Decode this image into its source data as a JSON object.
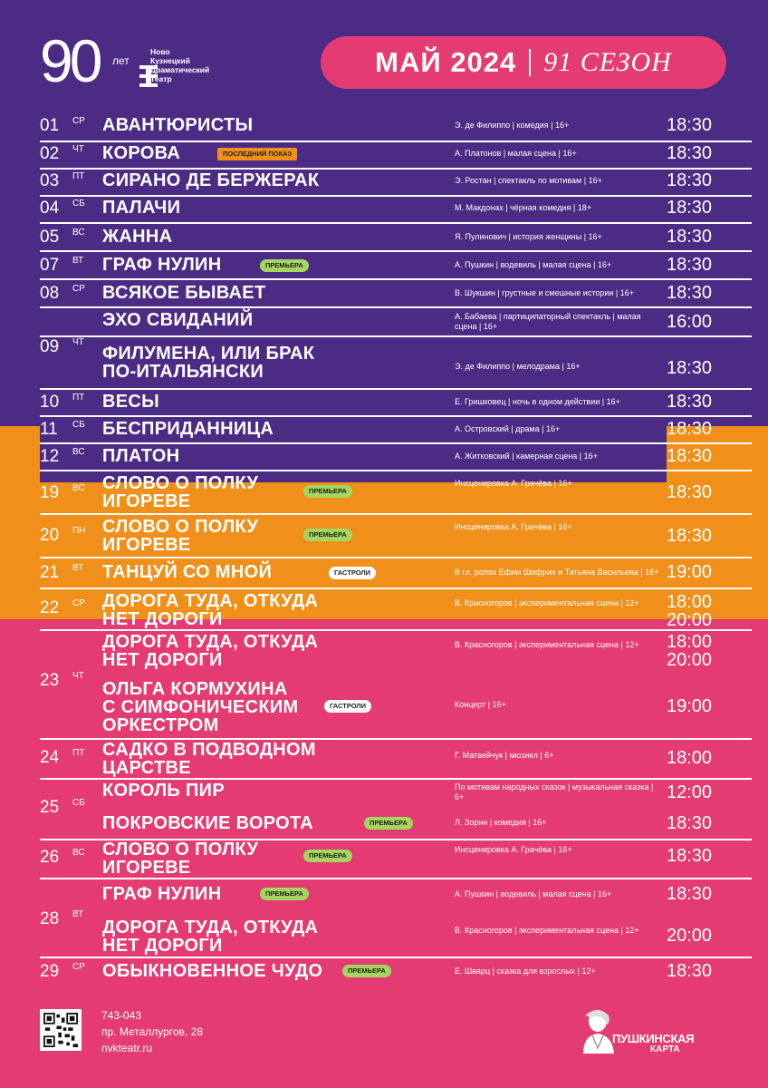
{
  "colors": {
    "purple": "#4c2b84",
    "orange": "#f0901b",
    "pink": "#e33b72",
    "premiere": "#a4d65e"
  },
  "header": {
    "logo_number": "90",
    "logo_let": "лет",
    "theatre_name": [
      "Ново",
      "Кузнецкий",
      "Драматический",
      "Театр"
    ],
    "month": "МАЙ 2024",
    "season": "91 СЕЗОН"
  },
  "schedule": [
    {
      "date": "01",
      "dow": "СР",
      "items": [
        {
          "title": [
            "АВАНТЮРИСТЫ"
          ],
          "meta": "Э. де Филиппо | комедия | 16+",
          "times": [
            "18:30"
          ]
        }
      ]
    },
    {
      "date": "02",
      "dow": "ЧТ",
      "items": [
        {
          "title": [
            "КОРОВА"
          ],
          "badge": "ПОСЛЕДНИЙ ПОКАЗ",
          "badge_type": "last",
          "meta": "А. Платонов | малая сцена | 16+",
          "times": [
            "18:30"
          ]
        }
      ]
    },
    {
      "date": "03",
      "dow": "ПТ",
      "items": [
        {
          "title": [
            "СИРАНО ДЕ БЕРЖЕРАК"
          ],
          "meta": "Э. Ростан | спектакль по мотивам | 16+",
          "times": [
            "18:30"
          ]
        }
      ]
    },
    {
      "date": "04",
      "dow": "СБ",
      "items": [
        {
          "title": [
            "ПАЛАЧИ"
          ],
          "meta": "М. Макдонах | чёрная комедия | 18+",
          "times": [
            "18:30"
          ]
        }
      ]
    },
    {
      "date": "05",
      "dow": "ВС",
      "items": [
        {
          "title": [
            "ЖАННА"
          ],
          "meta": "Я. Пулинович | история женщины | 16+",
          "times": [
            "18:30"
          ]
        }
      ]
    },
    {
      "date": "07",
      "dow": "ВТ",
      "items": [
        {
          "title": [
            "ГРАФ НУЛИН"
          ],
          "badge": "ПРЕМЬЕРА",
          "badge_type": "premiere",
          "meta": "А. Пушкин | водевиль | малая сцена | 16+",
          "times": [
            "18:30"
          ]
        }
      ]
    },
    {
      "date": "08",
      "dow": "СР",
      "items": [
        {
          "title": [
            "ВСЯКОЕ БЫВАЕТ"
          ],
          "meta": "В. Шукшин | грустные и смешные истории | 16+",
          "times": [
            "18:30"
          ]
        }
      ]
    },
    {
      "date": "09",
      "dow": "ЧТ",
      "items": [
        {
          "title": [
            "ЭХО СВИДАНИЙ"
          ],
          "meta": "А. Бабаева | партиципаторный спектакль | малая сцена | 16+",
          "times": [
            "16:00"
          ]
        },
        {
          "title": [
            "ФИЛУМЕНА, ИЛИ БРАК",
            "ПО-ИТАЛЬЯНСКИ"
          ],
          "meta": "Э. де Филиппо | мелодрама | 16+",
          "times": [
            "18:30"
          ]
        }
      ]
    },
    {
      "date": "10",
      "dow": "ПТ",
      "items": [
        {
          "title": [
            "ВЕСЫ"
          ],
          "meta": "Е. Гришковец | ночь в одном действии | 16+",
          "times": [
            "18:30"
          ]
        }
      ]
    },
    {
      "date": "11",
      "dow": "СБ",
      "items": [
        {
          "title": [
            "БЕСПРИДАННИЦА"
          ],
          "meta": "А. Островский | драма | 16+",
          "times": [
            "18:30"
          ]
        }
      ]
    },
    {
      "date": "12",
      "dow": "ВС",
      "items": [
        {
          "title": [
            "ПЛАТОН"
          ],
          "meta": "А. Житковский | камерная сцена | 16+",
          "times": [
            "18:30"
          ]
        }
      ]
    },
    {
      "date": "19",
      "dow": "ВС",
      "items": [
        {
          "title": [
            "СЛОВО О ПОЛКУ",
            "ИГОРЕВЕ"
          ],
          "badge": "ПРЕМЬЕРА",
          "badge_type": "premiere",
          "meta": "Инсценировка А. Грачёва | 16+",
          "times": [
            "18:30"
          ]
        }
      ]
    },
    {
      "date": "20",
      "dow": "ПН",
      "items": [
        {
          "title": [
            "СЛОВО О ПОЛКУ",
            "ИГОРЕВЕ"
          ],
          "badge": "ПРЕМЬЕРА",
          "badge_type": "premiere",
          "meta": "Инсценировка А. Грачёва | 16+",
          "times": [
            "18:30"
          ]
        }
      ]
    },
    {
      "date": "21",
      "dow": "ВТ",
      "items": [
        {
          "title": [
            "ТАНЦУЙ СО МНОЙ"
          ],
          "badge": "ГАСТРОЛИ",
          "badge_type": "tour",
          "meta": "В гл. ролях Ефим Шифрин и Татьяна Васильева | 16+",
          "times": [
            "19:00"
          ]
        }
      ]
    },
    {
      "date": "22",
      "dow": "СР",
      "items": [
        {
          "title": [
            "ДОРОГА ТУДА, ОТКУДА",
            "НЕТ ДОРОГИ"
          ],
          "meta": "В. Красногоров | экспериментальная сцена | 12+",
          "times": [
            "18:00",
            "20:00"
          ]
        }
      ]
    },
    {
      "date": "23",
      "dow": "ЧТ",
      "items": [
        {
          "title": [
            "ДОРОГА ТУДА, ОТКУДА",
            "НЕТ ДОРОГИ"
          ],
          "meta": "В. Красногоров | экспериментальная сцена | 12+",
          "times": [
            "18:00",
            "20:00"
          ]
        },
        {
          "title": [
            "ОЛЬГА КОРМУХИНА",
            "С СИМФОНИЧЕСКИМ",
            "ОРКЕСТРОМ"
          ],
          "badge": "ГАСТРОЛИ",
          "badge_type": "tour",
          "meta": "Концерт | 16+",
          "times": [
            "19:00"
          ]
        }
      ]
    },
    {
      "date": "24",
      "dow": "ПТ",
      "items": [
        {
          "title": [
            "САДКО В ПОДВОДНОМ",
            "ЦАРСТВЕ"
          ],
          "meta": "Г. Матвейчук | мюзикл | 6+",
          "times": [
            "18:00"
          ]
        }
      ]
    },
    {
      "date": "25",
      "dow": "СБ",
      "items": [
        {
          "title": [
            "КОРОЛЬ ПИР"
          ],
          "meta": "По мотивам народных сказок | музыкальная сказка | 6+",
          "times": [
            "12:00"
          ]
        },
        {
          "title": [
            "ПОКРОВСКИЕ ВОРОТА"
          ],
          "badge": "ПРЕМЬЕРА",
          "badge_type": "premiere",
          "meta": "Л. Зорин | комедия | 16+",
          "times": [
            "18:30"
          ]
        }
      ]
    },
    {
      "date": "26",
      "dow": "ВС",
      "items": [
        {
          "title": [
            "СЛОВО О ПОЛКУ",
            "ИГОРЕВЕ"
          ],
          "badge": "ПРЕМЬЕРА",
          "badge_type": "premiere",
          "meta": "Инсценировка А. Грачёва | 16+",
          "times": [
            "18:30"
          ]
        }
      ]
    },
    {
      "date": "28",
      "dow": "ВТ",
      "items": [
        {
          "title": [
            "ГРАФ НУЛИН"
          ],
          "badge": "ПРЕМЬЕРА",
          "badge_type": "premiere",
          "meta": "А. Пушкин | водевиль | малая сцена | 16+",
          "times": [
            "18:30"
          ]
        },
        {
          "title": [
            "ДОРОГА ТУДА, ОТКУДА",
            "НЕТ ДОРОГИ"
          ],
          "meta": "В. Красногоров | экспериментальная сцена | 12+",
          "times": [
            "20:00"
          ]
        }
      ]
    },
    {
      "date": "29",
      "dow": "СР",
      "items": [
        {
          "title": [
            "ОБЫКНОВЕННОЕ ЧУДО"
          ],
          "badge": "ПРЕМЬЕРА",
          "badge_type": "premiere",
          "meta": "Е. Шварц | сказка для взрослых | 12+",
          "times": [
            "18:30"
          ]
        }
      ]
    }
  ],
  "footer": {
    "phone": "743-043",
    "address": "пр. Металлургов, 28",
    "site": "nvkteatr.ru",
    "pushkin_card": [
      "ПУШКИНСКАЯ",
      "КАРТА"
    ],
    "qr_icon": "qr-code-icon",
    "pushkin_icon": "pushkin-bust-icon"
  }
}
